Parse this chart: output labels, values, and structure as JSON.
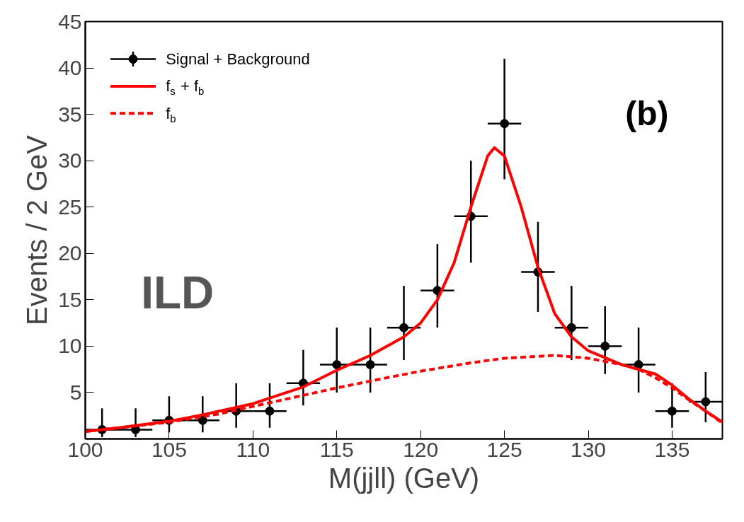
{
  "chart_data": {
    "type": "scatter",
    "xlabel": "M(jjll) (GeV)",
    "ylabel": "Events / 2 GeV",
    "xlim": [
      100,
      138
    ],
    "ylim": [
      0,
      45
    ],
    "xticks": [
      100,
      105,
      110,
      115,
      120,
      125,
      130,
      135
    ],
    "yticks": [
      5,
      10,
      15,
      20,
      25,
      30,
      35,
      40,
      45
    ],
    "grid": false,
    "legend": "top left",
    "annotations": [
      "(b)",
      "ILD"
    ],
    "series": [
      {
        "name": "Signal + Background",
        "marker": "circle",
        "color": "#000000",
        "x": [
          101,
          103,
          105,
          107,
          109,
          111,
          113,
          115,
          117,
          119,
          121,
          123,
          125,
          127,
          129,
          131,
          133,
          135,
          137
        ],
        "values": [
          1,
          1,
          2,
          2,
          3,
          3,
          6,
          8,
          8,
          12,
          16,
          24,
          34,
          18,
          12,
          10,
          8,
          3,
          4
        ],
        "errors": [
          [
            0.2,
            3.3
          ],
          [
            0.2,
            3.3
          ],
          [
            0.7,
            4.6
          ],
          [
            0.7,
            4.6
          ],
          [
            1.2,
            6
          ],
          [
            1.2,
            6
          ],
          [
            3.6,
            9.6
          ],
          [
            5,
            12
          ],
          [
            5,
            12
          ],
          [
            8.5,
            16.5
          ],
          [
            12,
            21
          ],
          [
            19,
            30
          ],
          [
            28,
            41
          ],
          [
            13.7,
            23.4
          ],
          [
            8.5,
            16.5
          ],
          [
            7,
            14.3
          ],
          [
            5,
            12
          ],
          [
            1.2,
            6
          ],
          [
            1.8,
            7.2
          ]
        ],
        "xerrors": [
          1,
          1,
          1,
          1,
          1,
          1,
          1,
          1,
          1,
          1,
          1,
          1,
          1,
          1,
          1,
          1,
          1,
          1,
          1
        ]
      },
      {
        "name": "f$_{s}$ + f$_{b}$",
        "type": "line",
        "line_style": "solid",
        "color": "#ff0000",
        "x": [
          100,
          102,
          105,
          107,
          110,
          113,
          115,
          117,
          119,
          120,
          121,
          122,
          123,
          124,
          124.4,
          125,
          126,
          127,
          128,
          129,
          130,
          132,
          134,
          135,
          136,
          137,
          138
        ],
        "values": [
          0.8,
          1.2,
          1.9,
          2.6,
          3.8,
          5.6,
          7.4,
          9,
          11,
          12.5,
          15,
          19,
          25,
          30.5,
          31.4,
          30.5,
          25,
          18.5,
          13.5,
          11,
          9.5,
          8,
          7,
          5.8,
          4.3,
          3,
          1.8
        ]
      },
      {
        "name": "f$_{b}$",
        "type": "line",
        "line_style": "dashed",
        "color": "#ff0000",
        "x": [
          100,
          102,
          105,
          108,
          110,
          113,
          115,
          118,
          120,
          123,
          125,
          128,
          130,
          132,
          133,
          134,
          135,
          136,
          137,
          138
        ],
        "values": [
          0.8,
          1.2,
          1.8,
          2.7,
          3.5,
          4.7,
          5.5,
          6.6,
          7.3,
          8.2,
          8.7,
          9.0,
          8.7,
          8.0,
          7.5,
          6.6,
          5.5,
          4.2,
          3,
          1.7
        ]
      }
    ]
  }
}
